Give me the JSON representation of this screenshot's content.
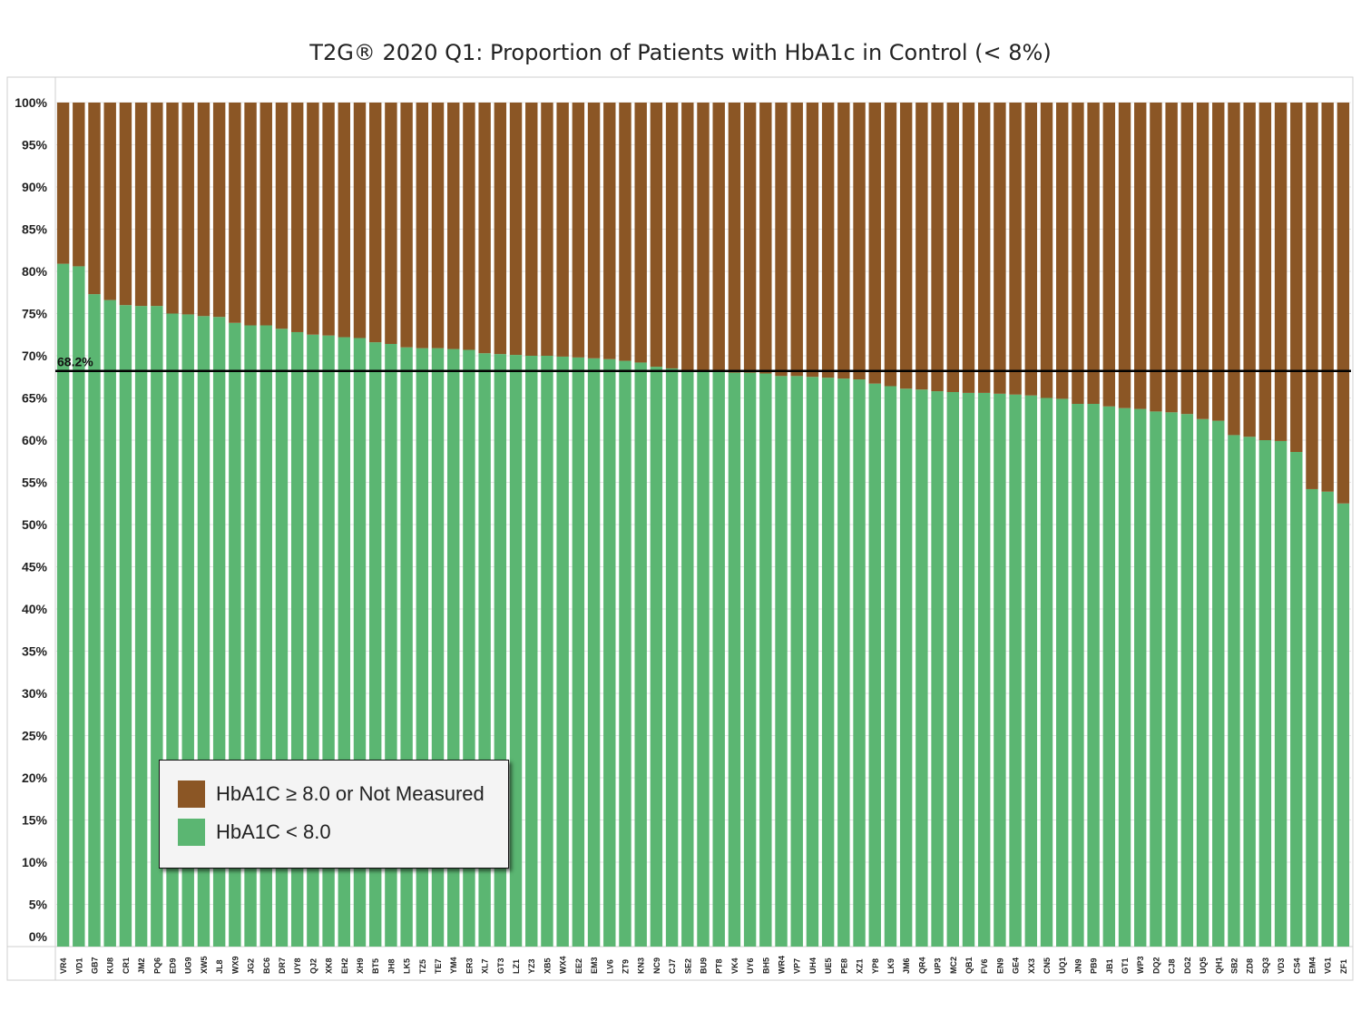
{
  "colors": {
    "above": "#8B5625",
    "below": "#5BB672",
    "frame": "#cfcfcf",
    "reference_line": "#000000"
  },
  "chart_data": {
    "type": "bar",
    "stacked": true,
    "normalized_to_100": true,
    "title": "T2G® 2020 Q1: Proportion of Patients with HbA1c in Control (< 8%)",
    "categories": [
      "VR4",
      "VD1",
      "GB7",
      "KU8",
      "CR1",
      "JM2",
      "PQ6",
      "ED9",
      "UG9",
      "XW5",
      "JL8",
      "WX9",
      "JG2",
      "BC6",
      "DR7",
      "UY8",
      "QJ2",
      "XK8",
      "EH2",
      "XH9",
      "BT5",
      "JH8",
      "LK5",
      "TZ5",
      "TE7",
      "YM4",
      "ER3",
      "XL7",
      "GT3",
      "LZ1",
      "YZ3",
      "XB5",
      "WX4",
      "EE2",
      "EM3",
      "LV6",
      "ZT9",
      "KN3",
      "NC9",
      "CJ7",
      "SE2",
      "BU9",
      "PT8",
      "VK4",
      "UY6",
      "BH5",
      "WR4",
      "VP7",
      "UH4",
      "UE5",
      "PE8",
      "XZ1",
      "YP8",
      "LK9",
      "JM6",
      "QR4",
      "UP3",
      "MC2",
      "QB1",
      "FV6",
      "EN9",
      "GE4",
      "XX3",
      "CN5",
      "UQ1",
      "JN9",
      "PB9",
      "JB1",
      "GT1",
      "WP3",
      "DQ2",
      "CJ8",
      "DG2",
      "UQ5",
      "QH1",
      "SB2",
      "ZD8",
      "SQ3",
      "VD3",
      "CS4",
      "EM4",
      "VG1",
      "ZF1"
    ],
    "series": [
      {
        "name": "HbA1C < 8.0",
        "values": [
          80.9,
          80.6,
          77.3,
          76.6,
          76.0,
          75.9,
          75.9,
          75.0,
          74.9,
          74.7,
          74.6,
          73.9,
          73.6,
          73.6,
          73.2,
          72.8,
          72.5,
          72.4,
          72.2,
          72.1,
          71.6,
          71.4,
          71.0,
          70.9,
          70.9,
          70.8,
          70.7,
          70.3,
          70.2,
          70.1,
          70.0,
          70.0,
          69.9,
          69.8,
          69.7,
          69.6,
          69.4,
          69.2,
          68.7,
          68.5,
          68.3,
          68.2,
          68.1,
          68.0,
          68.0,
          67.9,
          67.6,
          67.6,
          67.5,
          67.4,
          67.3,
          67.2,
          66.7,
          66.4,
          66.1,
          66.0,
          65.8,
          65.7,
          65.6,
          65.6,
          65.5,
          65.4,
          65.3,
          65.0,
          64.9,
          64.3,
          64.3,
          64.0,
          63.8,
          63.7,
          63.4,
          63.3,
          63.1,
          62.5,
          62.3,
          60.6,
          60.4,
          60.0,
          59.9,
          58.6,
          54.2,
          53.9,
          52.5
        ]
      },
      {
        "name": "HbA1C ≥ 8.0 or Not Measured",
        "values": [
          19.1,
          19.4,
          22.7,
          23.4,
          24.0,
          24.1,
          24.1,
          25.0,
          25.1,
          25.3,
          25.4,
          26.1,
          26.4,
          26.4,
          26.8,
          27.2,
          27.5,
          27.6,
          27.8,
          27.9,
          28.4,
          28.6,
          29.0,
          29.1,
          29.1,
          29.2,
          29.3,
          29.7,
          29.8,
          29.9,
          30.0,
          30.0,
          30.1,
          30.2,
          30.3,
          30.4,
          30.6,
          30.8,
          31.3,
          31.5,
          31.7,
          31.8,
          31.9,
          32.0,
          32.0,
          32.1,
          32.4,
          32.4,
          32.5,
          32.6,
          32.7,
          32.8,
          33.3,
          33.6,
          33.9,
          34.0,
          34.2,
          34.3,
          34.4,
          34.4,
          34.5,
          34.6,
          34.7,
          35.0,
          35.1,
          35.7,
          35.7,
          36.0,
          36.2,
          36.3,
          36.6,
          36.7,
          36.9,
          37.5,
          37.7,
          39.4,
          39.6,
          40.0,
          40.1,
          41.4,
          45.8,
          46.1,
          47.5
        ]
      }
    ],
    "reference_line": {
      "value": 68.2,
      "label": "68.2%"
    },
    "ylim": [
      0,
      100
    ],
    "yticks": [
      "0%",
      "5%",
      "10%",
      "15%",
      "20%",
      "25%",
      "30%",
      "35%",
      "40%",
      "45%",
      "50%",
      "55%",
      "60%",
      "65%",
      "70%",
      "75%",
      "80%",
      "85%",
      "90%",
      "95%",
      "100%"
    ],
    "legend": {
      "position": "bottom-left",
      "items": [
        {
          "label": "HbA1C ≥ 8.0 or Not Measured",
          "color": "#8B5625"
        },
        {
          "label": "HbA1C < 8.0",
          "color": "#5BB672"
        }
      ]
    }
  }
}
